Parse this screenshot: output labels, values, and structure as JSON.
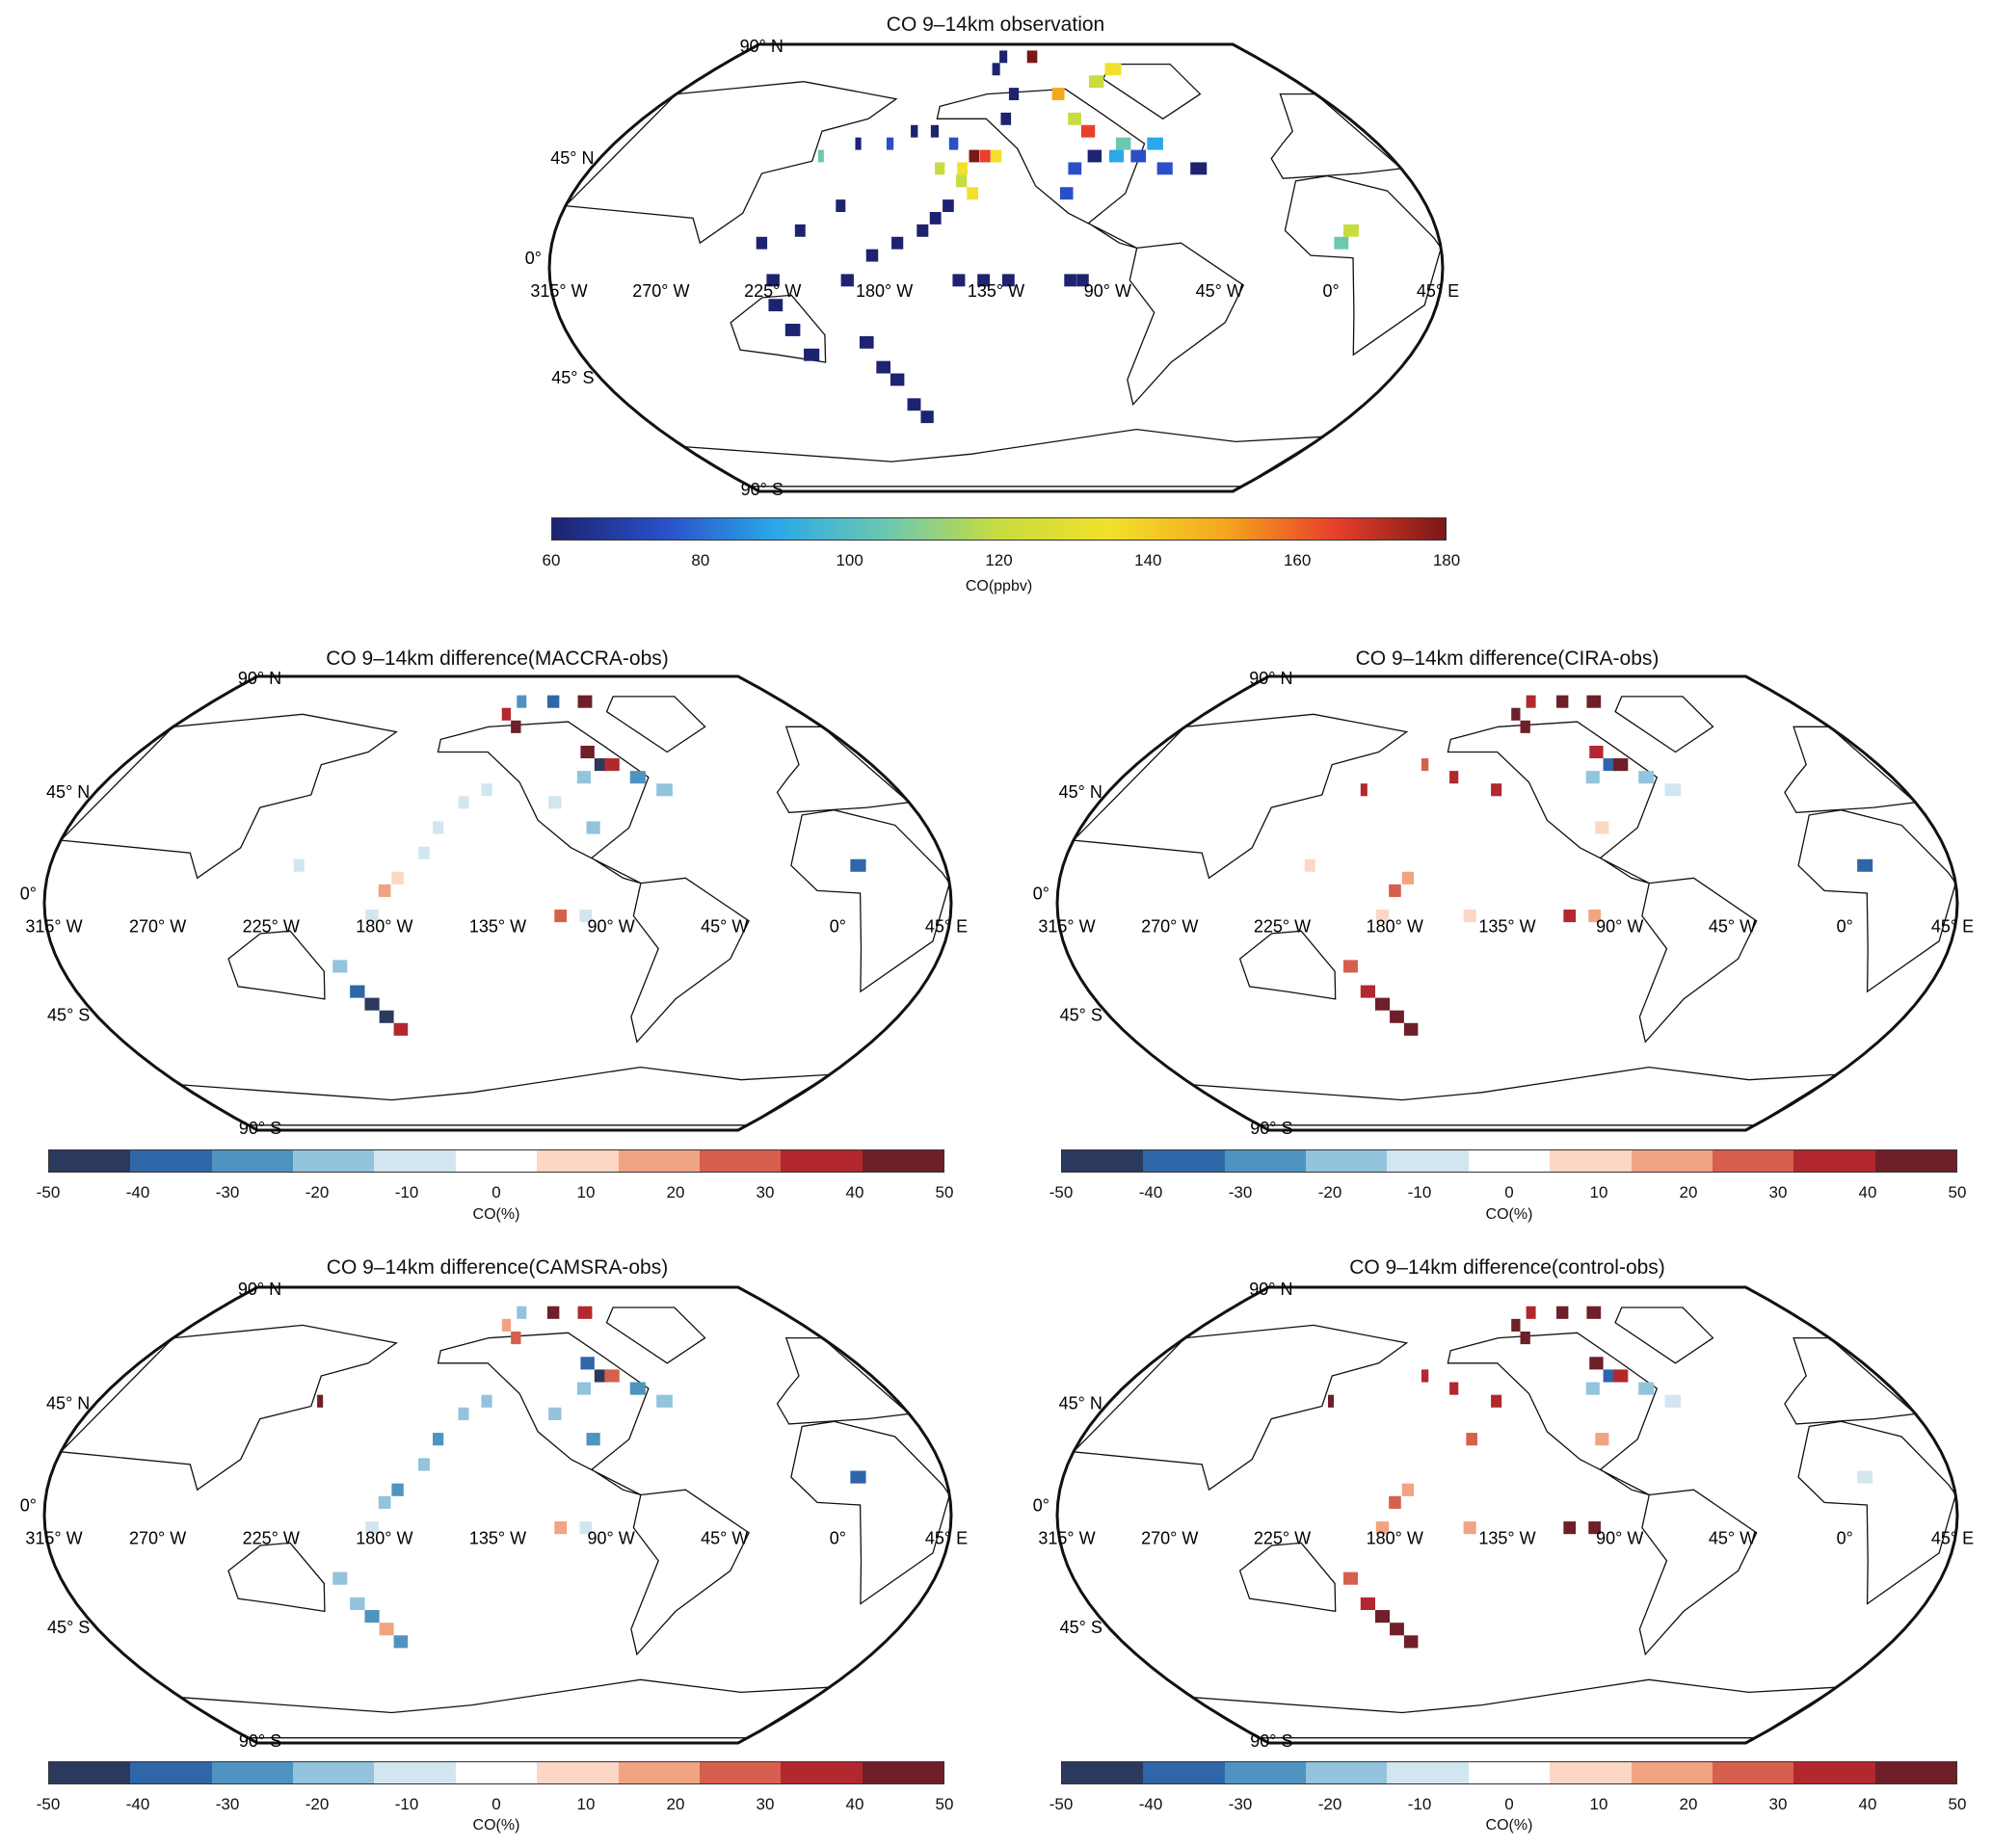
{
  "axes": {
    "lat_labels": [
      "90° N",
      "45° N",
      "0°",
      "45° S",
      "90° S"
    ],
    "lon_labels": [
      "315° W",
      "270° W",
      "225° W",
      "180° W",
      "135° W",
      "90° W",
      "45° W",
      "0°",
      "45° E"
    ]
  },
  "colorbars": {
    "obs": {
      "ticks": [
        "60",
        "80",
        "100",
        "120",
        "140",
        "160",
        "180"
      ],
      "label": "CO(ppbv)",
      "range": [
        60,
        180
      ],
      "colors": [
        "#1c2370",
        "#2a4fc8",
        "#2aa8e8",
        "#6cc8b0",
        "#c8dc40",
        "#f2e02a",
        "#f5a81e",
        "#e8402a",
        "#7a1818"
      ]
    },
    "diff": {
      "ticks": [
        "-50",
        "-40",
        "-30",
        "-20",
        "-10",
        "0",
        "10",
        "20",
        "30",
        "40",
        "50"
      ],
      "label": "CO(%)",
      "range": [
        -50,
        50
      ],
      "colors": [
        "#2b3a5c",
        "#2f66a8",
        "#4f94c0",
        "#93c3dd",
        "#d2e6f0",
        "#ffffff",
        "#fbd7c4",
        "#f0a481",
        "#d6604d",
        "#b2282e",
        "#6e1f28"
      ]
    }
  },
  "chart_data": [
    {
      "type": "heatmap",
      "title": "CO 9–14km observation",
      "colorbar": "obs",
      "cells": [
        [
          -225,
          -5,
          68
        ],
        [
          -225,
          -15,
          68
        ],
        [
          -220,
          -25,
          70
        ],
        [
          -215,
          -35,
          68
        ],
        [
          -230,
          10,
          70
        ],
        [
          -215,
          15,
          68
        ],
        [
          -200,
          25,
          70
        ],
        [
          -190,
          -30,
          66
        ],
        [
          -185,
          -40,
          68
        ],
        [
          -180,
          -45,
          66
        ],
        [
          -175,
          -55,
          68
        ],
        [
          -170,
          -60,
          66
        ],
        [
          -195,
          -5,
          68
        ],
        [
          -185,
          5,
          70
        ],
        [
          -175,
          10,
          68
        ],
        [
          -165,
          15,
          72
        ],
        [
          -160,
          20,
          70
        ],
        [
          -155,
          25,
          70
        ],
        [
          -150,
          -5,
          70
        ],
        [
          -140,
          -5,
          72
        ],
        [
          -130,
          -5,
          68
        ],
        [
          -105,
          -5,
          68
        ],
        [
          -100,
          -5,
          68
        ],
        [
          -160,
          40,
          120
        ],
        [
          -150,
          40,
          130
        ],
        [
          -145,
          45,
          175
        ],
        [
          -140,
          45,
          160
        ],
        [
          -135,
          45,
          135
        ],
        [
          -150,
          35,
          125
        ],
        [
          -145,
          30,
          130
        ],
        [
          -155,
          50,
          75
        ],
        [
          -165,
          55,
          72
        ],
        [
          -175,
          55,
          70
        ],
        [
          -185,
          50,
          75
        ],
        [
          -200,
          50,
          70
        ],
        [
          -215,
          45,
          100
        ],
        [
          -130,
          60,
          72
        ],
        [
          -125,
          70,
          66
        ],
        [
          -135,
          80,
          66
        ],
        [
          -130,
          85,
          70
        ],
        [
          -110,
          85,
          170
        ],
        [
          -100,
          70,
          140
        ],
        [
          -95,
          60,
          120
        ],
        [
          -90,
          55,
          160
        ],
        [
          -90,
          45,
          70
        ],
        [
          -100,
          40,
          75
        ],
        [
          -105,
          30,
          85
        ],
        [
          -80,
          45,
          95
        ],
        [
          -75,
          50,
          110
        ],
        [
          -70,
          45,
          80
        ],
        [
          -60,
          50,
          95
        ],
        [
          -60,
          40,
          80
        ],
        [
          -45,
          40,
          70
        ],
        [
          10,
          15,
          125
        ],
        [
          5,
          10,
          100
        ],
        [
          -75,
          75,
          120
        ],
        [
          -60,
          80,
          130
        ]
      ]
    },
    {
      "type": "heatmap",
      "title": "CO 9–14km difference(MACCRA-obs)",
      "colorbar": "diff",
      "cells": [
        [
          -125,
          70,
          45
        ],
        [
          -130,
          75,
          40
        ],
        [
          -120,
          80,
          -25
        ],
        [
          -100,
          80,
          -35
        ],
        [
          -80,
          80,
          48
        ],
        [
          -90,
          60,
          45
        ],
        [
          -85,
          55,
          -45
        ],
        [
          -80,
          55,
          40
        ],
        [
          -95,
          50,
          -20
        ],
        [
          -70,
          50,
          -25
        ],
        [
          -60,
          45,
          -15
        ],
        [
          -140,
          45,
          -10
        ],
        [
          -150,
          40,
          -8
        ],
        [
          -160,
          30,
          -10
        ],
        [
          -165,
          20,
          -12
        ],
        [
          -175,
          10,
          5
        ],
        [
          -180,
          5,
          15
        ],
        [
          -185,
          -5,
          -8
        ],
        [
          -200,
          -25,
          -15
        ],
        [
          -195,
          -35,
          -35
        ],
        [
          -190,
          -40,
          -48
        ],
        [
          -185,
          -45,
          -45
        ],
        [
          -180,
          -50,
          35
        ],
        [
          -110,
          -5,
          30
        ],
        [
          -100,
          -5,
          -10
        ],
        [
          -215,
          15,
          -10
        ],
        [
          10,
          15,
          -35
        ],
        [
          -95,
          30,
          -15
        ],
        [
          -110,
          40,
          -12
        ]
      ]
    },
    {
      "type": "heatmap",
      "title": "CO 9–14km difference(CIRA-obs)",
      "colorbar": "diff",
      "cells": [
        [
          -125,
          70,
          45
        ],
        [
          -130,
          75,
          48
        ],
        [
          -120,
          80,
          40
        ],
        [
          -100,
          80,
          45
        ],
        [
          -80,
          80,
          48
        ],
        [
          -90,
          60,
          40
        ],
        [
          -85,
          55,
          -40
        ],
        [
          -80,
          55,
          45
        ],
        [
          -95,
          50,
          -15
        ],
        [
          -70,
          50,
          -20
        ],
        [
          -60,
          45,
          -12
        ],
        [
          -140,
          45,
          35
        ],
        [
          -160,
          50,
          40
        ],
        [
          -200,
          45,
          35
        ],
        [
          -175,
          55,
          30
        ],
        [
          -175,
          10,
          20
        ],
        [
          -180,
          5,
          25
        ],
        [
          -185,
          -5,
          10
        ],
        [
          -200,
          -25,
          25
        ],
        [
          -195,
          -35,
          35
        ],
        [
          -190,
          -40,
          45
        ],
        [
          -185,
          -45,
          48
        ],
        [
          -180,
          -50,
          45
        ],
        [
          -110,
          -5,
          35
        ],
        [
          -100,
          -5,
          15
        ],
        [
          -215,
          15,
          10
        ],
        [
          10,
          15,
          -35
        ],
        [
          -95,
          30,
          10
        ],
        [
          -150,
          -5,
          10
        ]
      ]
    },
    {
      "type": "heatmap",
      "title": "CO 9–14km difference(CAMSRA-obs)",
      "colorbar": "diff",
      "cells": [
        [
          -125,
          70,
          25
        ],
        [
          -130,
          75,
          20
        ],
        [
          -120,
          80,
          -15
        ],
        [
          -100,
          80,
          45
        ],
        [
          -80,
          80,
          40
        ],
        [
          -90,
          60,
          -40
        ],
        [
          -85,
          55,
          -45
        ],
        [
          -80,
          55,
          30
        ],
        [
          -95,
          50,
          -20
        ],
        [
          -70,
          50,
          -25
        ],
        [
          -60,
          45,
          -20
        ],
        [
          -140,
          45,
          -20
        ],
        [
          -150,
          40,
          -20
        ],
        [
          -160,
          30,
          -25
        ],
        [
          -165,
          20,
          -20
        ],
        [
          -175,
          10,
          -25
        ],
        [
          -180,
          5,
          -20
        ],
        [
          -185,
          -5,
          -10
        ],
        [
          -200,
          -25,
          -15
        ],
        [
          -195,
          -35,
          -20
        ],
        [
          -190,
          -40,
          -25
        ],
        [
          -185,
          -45,
          20
        ],
        [
          -180,
          -50,
          -30
        ],
        [
          -110,
          -5,
          20
        ],
        [
          -100,
          -5,
          -10
        ],
        [
          -215,
          45,
          45
        ],
        [
          10,
          15,
          -35
        ],
        [
          -95,
          30,
          -30
        ],
        [
          -110,
          40,
          -20
        ]
      ]
    },
    {
      "type": "heatmap",
      "title": "CO 9–14km difference(control-obs)",
      "colorbar": "diff",
      "cells": [
        [
          -125,
          70,
          45
        ],
        [
          -130,
          75,
          48
        ],
        [
          -120,
          80,
          40
        ],
        [
          -100,
          80,
          45
        ],
        [
          -80,
          80,
          48
        ],
        [
          -90,
          60,
          45
        ],
        [
          -85,
          55,
          -40
        ],
        [
          -80,
          55,
          40
        ],
        [
          -95,
          50,
          -15
        ],
        [
          -70,
          50,
          -20
        ],
        [
          -60,
          45,
          -12
        ],
        [
          -140,
          45,
          35
        ],
        [
          -160,
          50,
          40
        ],
        [
          -215,
          45,
          48
        ],
        [
          -175,
          55,
          35
        ],
        [
          -175,
          10,
          20
        ],
        [
          -180,
          5,
          25
        ],
        [
          -185,
          -5,
          20
        ],
        [
          -200,
          -25,
          30
        ],
        [
          -195,
          -35,
          40
        ],
        [
          -190,
          -40,
          48
        ],
        [
          -185,
          -45,
          45
        ],
        [
          -180,
          -50,
          45
        ],
        [
          -110,
          -5,
          45
        ],
        [
          -100,
          -5,
          45
        ],
        [
          -150,
          -5,
          20
        ],
        [
          10,
          15,
          -10
        ],
        [
          -95,
          30,
          15
        ],
        [
          -150,
          30,
          25
        ]
      ]
    }
  ]
}
